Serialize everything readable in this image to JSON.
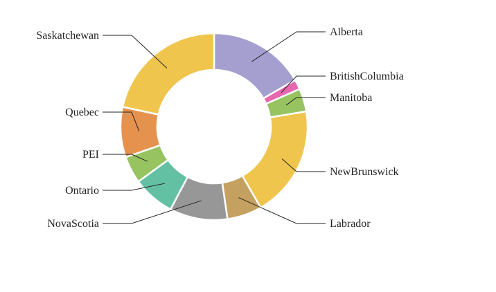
{
  "chart_data": {
    "type": "pie",
    "variant": "donut",
    "title": "",
    "categories": [
      "Alberta",
      "BritishColumbia",
      "Manitoba",
      "NewBrunswick",
      "Labrador",
      "NovaScotia",
      "Ontario",
      "PEI",
      "Quebec",
      "Saskatchewan"
    ],
    "values": [
      16.7,
      1.7,
      4.0,
      19.3,
      6.0,
      10.0,
      7.3,
      4.7,
      8.7,
      21.6
    ],
    "colors": [
      "#a49fce",
      "#e667b0",
      "#97c460",
      "#f0c54e",
      "#c4a161",
      "#979797",
      "#63c0a3",
      "#97c460",
      "#e6924f",
      "#f0c54e"
    ],
    "legend": "none",
    "labels": "outside-with-leader-lines"
  }
}
